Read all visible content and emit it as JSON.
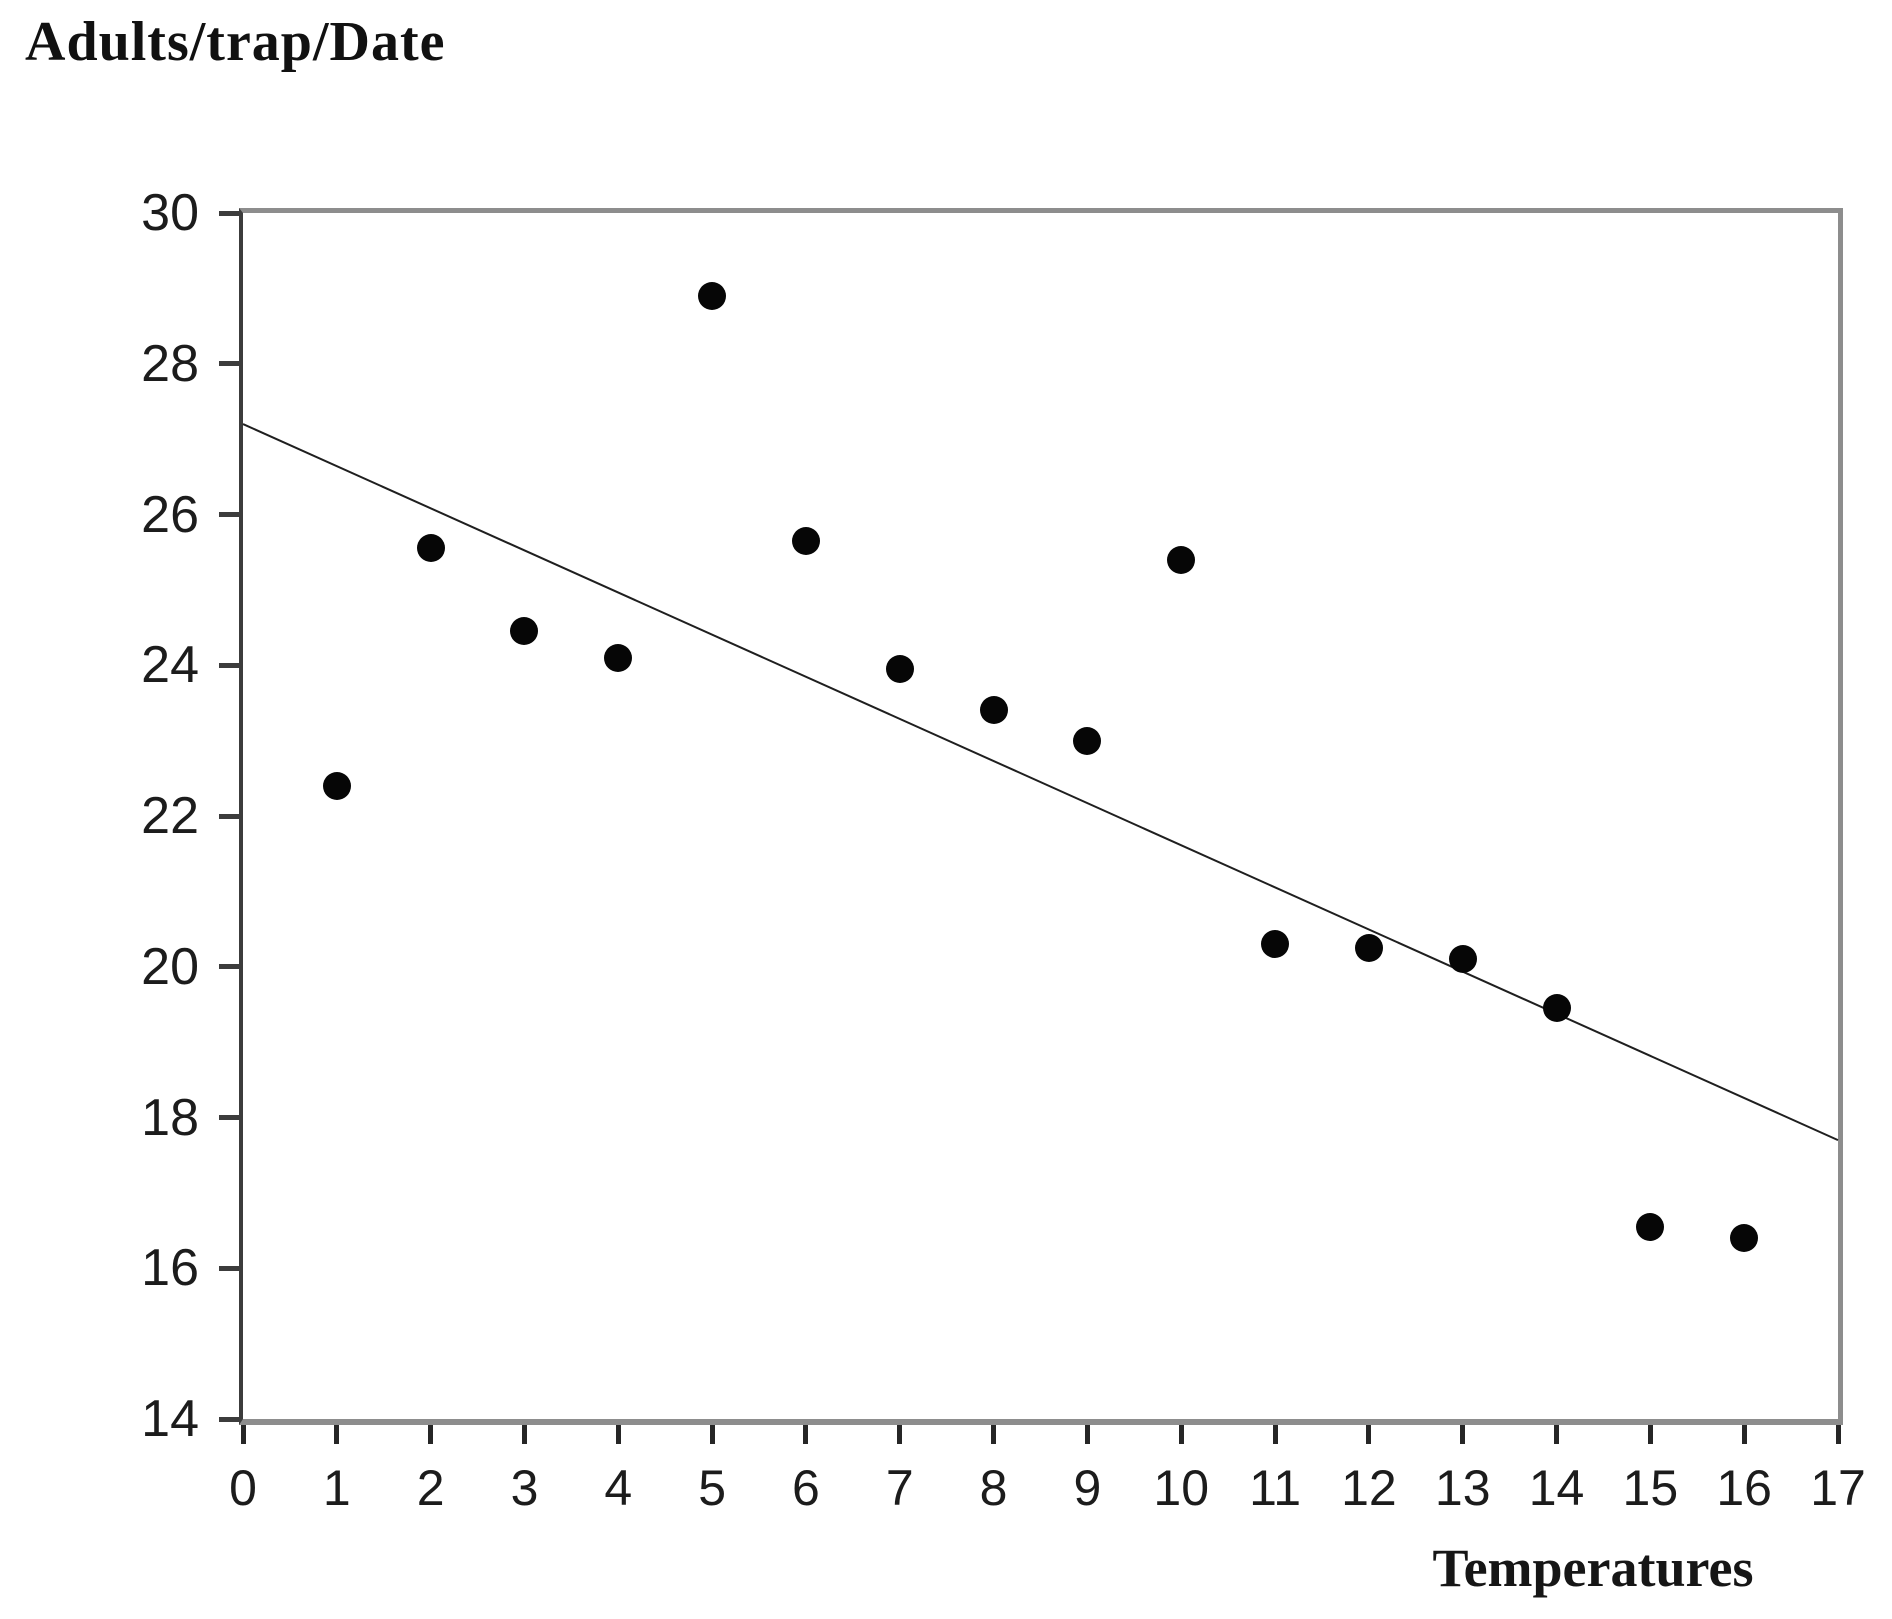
{
  "title": "Adults/trap/Date",
  "colors": {
    "background": "#ffffff",
    "point": "#060606",
    "trend_line": "#1f1f1f",
    "frame": "#8d8d8d",
    "axis": "#3c3c3c",
    "tick": "#262626",
    "text": "#1c1c1c"
  },
  "chart_data": {
    "type": "scatter",
    "title": "Adults/trap/Date",
    "xlabel": "Temperatures",
    "ylabel": "Adults/trap/Date",
    "xlim": [
      0,
      17
    ],
    "ylim": [
      14,
      30
    ],
    "x_ticks": [
      0,
      1,
      2,
      3,
      4,
      5,
      6,
      7,
      8,
      9,
      10,
      11,
      12,
      13,
      14,
      15,
      16,
      17
    ],
    "y_ticks": [
      30,
      28,
      26,
      24,
      22,
      20,
      18,
      16,
      14
    ],
    "grid": false,
    "legend": "none",
    "series": [
      {
        "name": "Adults per trap per date",
        "marker": "filled-circle",
        "color": "#060606",
        "points": [
          [
            1,
            22.4
          ],
          [
            2,
            25.55
          ],
          [
            3,
            24.45
          ],
          [
            4,
            24.1
          ],
          [
            5,
            28.9
          ],
          [
            6,
            25.65
          ],
          [
            7,
            23.95
          ],
          [
            8,
            23.4
          ],
          [
            9,
            23.0
          ],
          [
            10,
            25.4
          ],
          [
            11,
            20.3
          ],
          [
            12,
            20.25
          ],
          [
            13,
            20.1
          ],
          [
            14,
            19.45
          ],
          [
            15,
            16.55
          ],
          [
            16,
            16.4
          ]
        ]
      }
    ],
    "trendline": {
      "x1": 0,
      "y1": 27.2,
      "x2": 17,
      "y2": 17.7,
      "color": "#1f1f1f",
      "width": 2
    }
  }
}
